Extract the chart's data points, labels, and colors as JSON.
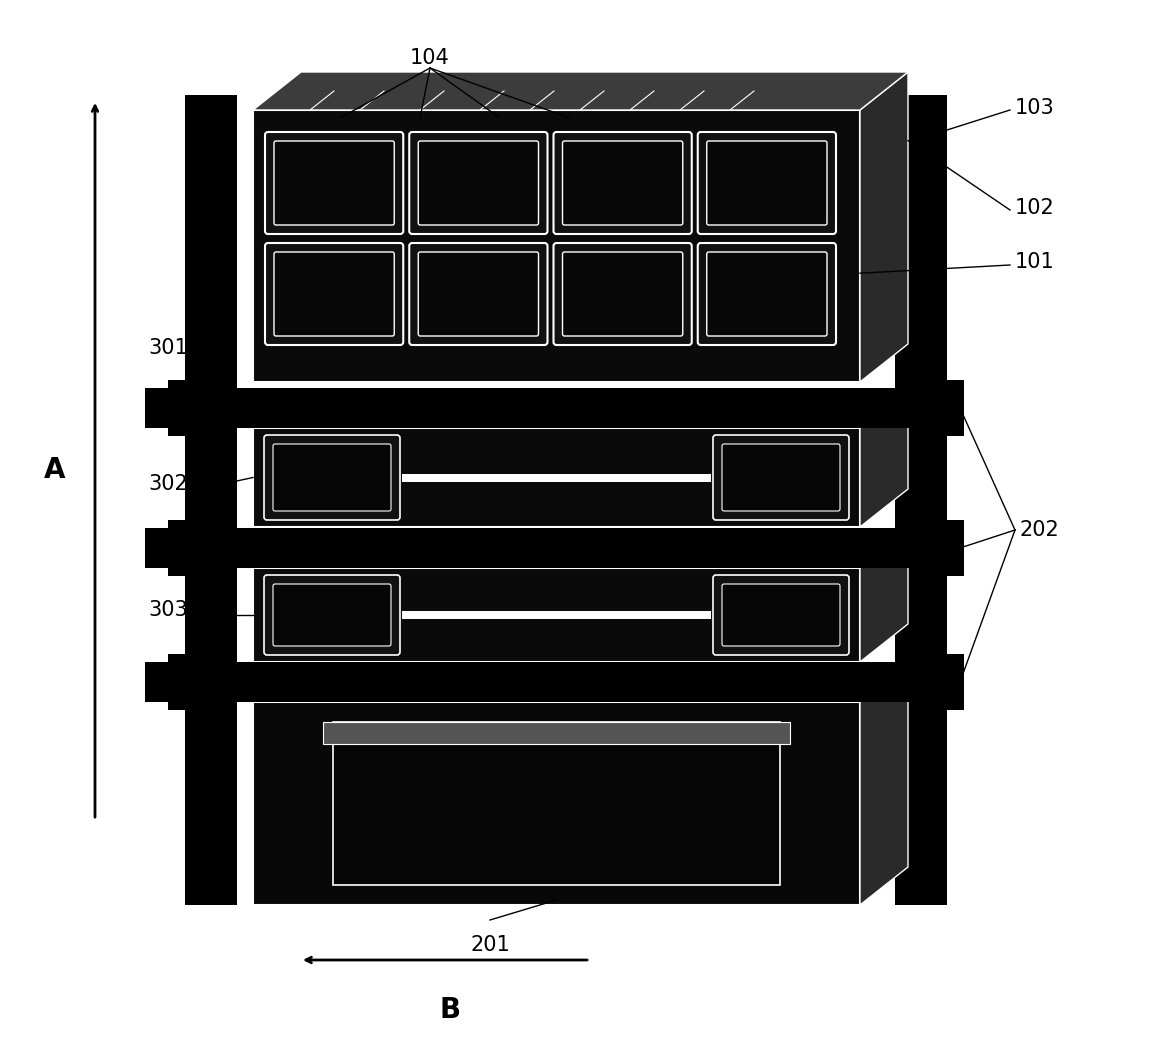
{
  "bg_color": "#ffffff",
  "fg_color": "#000000",
  "fig_width": 11.56,
  "fig_height": 10.62,
  "dpi": 100
}
